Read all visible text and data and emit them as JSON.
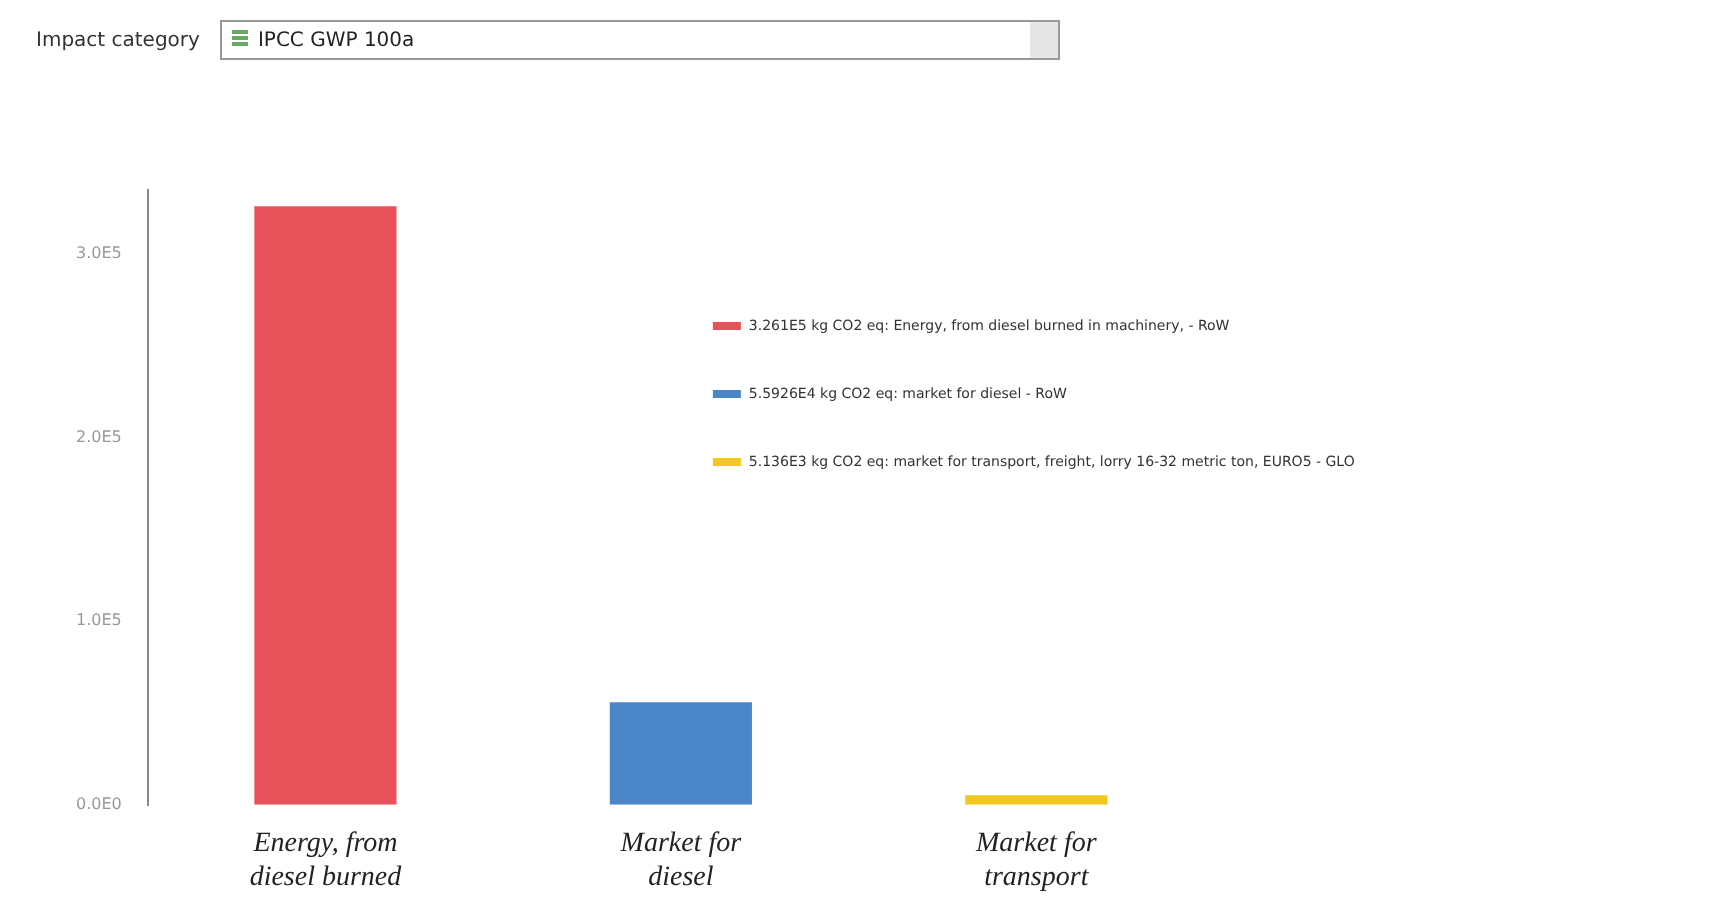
{
  "chart_data": {
    "type": "bar",
    "annotations": [
      "Impact category",
      "IPCC GWP 100a"
    ],
    "categories": [
      "Energy, from diesel burned",
      "Market for diesel",
      "Market for transport"
    ],
    "series": [
      {
        "name": "3.261E5 kg CO2 eq: Energy, from diesel burned in machinery, - RoW",
        "color": "#e8525a",
        "values": [
          326100,
          null,
          null
        ]
      },
      {
        "name": "5.5926E4 kg CO2 eq: market for diesel - RoW",
        "color": "#4a86c8",
        "values": [
          null,
          55926,
          null
        ]
      },
      {
        "name": "5.136E3 kg CO2 eq: market for transport, freight, lorry 16-32 metric ton, EURO5 - GLO",
        "color": "#f2c81e",
        "values": [
          null,
          null,
          5136
        ]
      }
    ],
    "ylim": [
      0,
      335000
    ],
    "yticks": [
      {
        "value": 0,
        "label": "0.0E0"
      },
      {
        "value": 100000,
        "label": "1.0E5"
      },
      {
        "value": 200000,
        "label": "2.0E5"
      },
      {
        "value": 300000,
        "label": "3.0E5"
      }
    ],
    "legend": "right"
  }
}
